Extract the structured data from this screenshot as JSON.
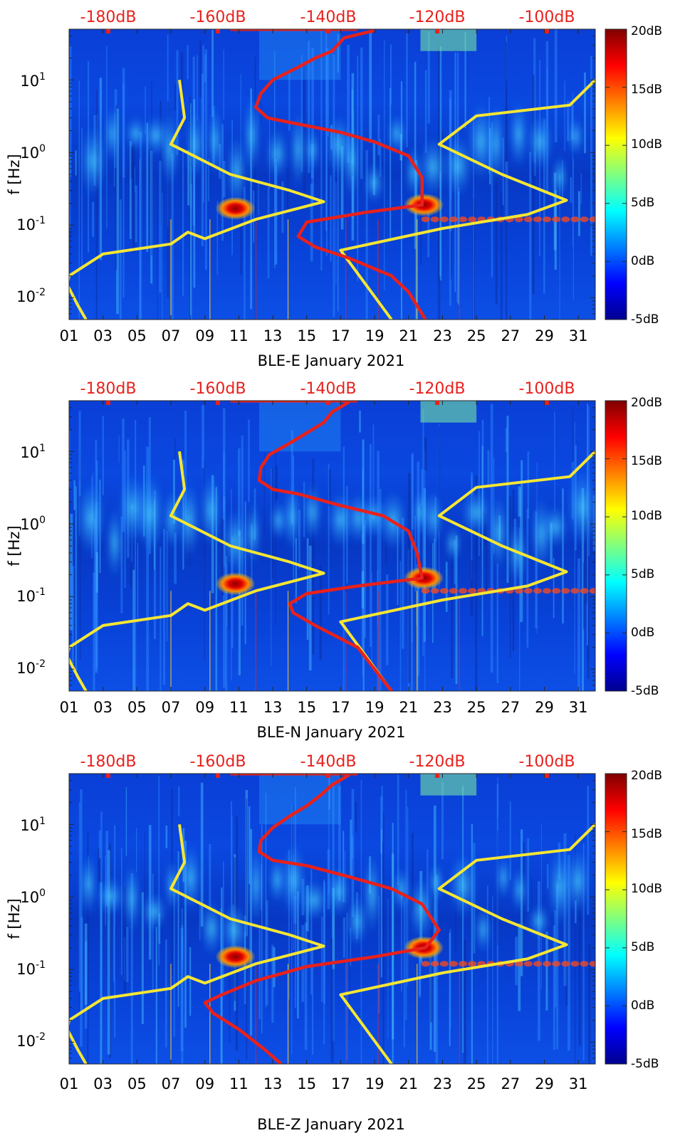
{
  "figure": {
    "panels": [
      {
        "id": "E",
        "xlabel": "BLE-E January 2021",
        "ylabel": "f [Hz]",
        "colorbar_ticks": [
          "20dB",
          "15dB",
          "10dB",
          "5dB",
          "0dB",
          "-5dB"
        ],
        "top_ticks": [
          "-180dB",
          "-160dB",
          "-140dB",
          "-120dB",
          "-100dB"
        ]
      },
      {
        "id": "N",
        "xlabel": "BLE-N January 2021",
        "ylabel": "f [Hz]",
        "colorbar_ticks": [
          "20dB",
          "15dB",
          "10dB",
          "5dB",
          "0dB",
          "-5dB"
        ],
        "top_ticks": [
          "-180dB",
          "-160dB",
          "-140dB",
          "-120dB",
          "-100dB"
        ]
      },
      {
        "id": "Z",
        "xlabel": "BLE-Z January 2021",
        "ylabel": "f [Hz]",
        "colorbar_ticks": [
          "20dB",
          "15dB",
          "10dB",
          "5dB",
          "0dB",
          "-5dB"
        ],
        "top_ticks": [
          "-180dB",
          "-160dB",
          "-140dB",
          "-120dB",
          "-100dB"
        ]
      }
    ],
    "x_ticks": [
      "01",
      "03",
      "05",
      "07",
      "09",
      "11",
      "13",
      "15",
      "17",
      "19",
      "21",
      "23",
      "25",
      "27",
      "29",
      "31"
    ],
    "y_ticks": [
      {
        "base": "10",
        "exp": "1"
      },
      {
        "base": "10",
        "exp": "0"
      },
      {
        "base": "10",
        "exp": "-1"
      },
      {
        "base": "10",
        "exp": "-2"
      }
    ]
  },
  "chart_data": [
    {
      "type": "heatmap",
      "title": "",
      "xlabel": "BLE-E January 2021",
      "ylabel": "f [Hz]",
      "xlim": [
        1,
        32
      ],
      "ylim_hz": [
        0.005,
        50
      ],
      "y_scale": "log",
      "colorbar": {
        "range_db": [
          -5,
          20
        ],
        "ticks": [
          20,
          15,
          10,
          5,
          0,
          -5
        ],
        "colormap": "jet"
      },
      "top_axis": {
        "ticks_db": [
          -180,
          -160,
          -140,
          -120,
          -100
        ],
        "color": "#e8211c"
      },
      "hotspots": [
        {
          "day": 10.8,
          "f_hz": 0.17,
          "level_db": 20
        },
        {
          "day": 21.9,
          "f_hz": 0.19,
          "level_db": 20
        }
      ],
      "series": [
        {
          "color": "#f5e633",
          "points": [
            [
              7.5,
              10
            ],
            [
              7.8,
              3
            ],
            [
              7.0,
              1.3
            ],
            [
              10.5,
              0.5
            ],
            [
              14.0,
              0.3
            ],
            [
              16.0,
              0.21
            ],
            [
              12.0,
              0.12
            ],
            [
              9.0,
              0.065
            ],
            [
              8.0,
              0.08
            ],
            [
              7.0,
              0.055
            ],
            [
              3.0,
              0.04
            ],
            [
              1.0,
              0.02
            ],
            [
              0.9,
              0.015
            ],
            [
              1.5,
              0.008
            ],
            [
              2.0,
              0.005
            ]
          ]
        },
        {
          "color": "#f5e633",
          "points": [
            [
              32,
              10
            ],
            [
              30.5,
              4.5
            ],
            [
              25,
              3.2
            ],
            [
              22.8,
              1.3
            ],
            [
              26.5,
              0.5
            ],
            [
              30.3,
              0.22
            ],
            [
              28,
              0.14
            ],
            [
              23,
              0.09
            ],
            [
              17,
              0.045
            ],
            [
              20,
              0.005
            ]
          ]
        },
        {
          "color": "#e8211c",
          "points": [
            [
              19,
              48
            ],
            [
              17.2,
              38
            ],
            [
              16.5,
              25
            ],
            [
              15.5,
              20
            ],
            [
              14.5,
              15
            ],
            [
              13.0,
              10
            ],
            [
              12.3,
              6.5
            ],
            [
              12.0,
              4.2
            ],
            [
              12.7,
              3.0
            ],
            [
              14.0,
              2.6
            ],
            [
              17.0,
              1.9
            ],
            [
              19.0,
              1.4
            ],
            [
              21.0,
              0.9
            ],
            [
              21.8,
              0.45
            ],
            [
              21.8,
              0.19
            ],
            [
              18.5,
              0.15
            ],
            [
              15.0,
              0.11
            ],
            [
              14.5,
              0.07
            ],
            [
              15.5,
              0.05
            ],
            [
              17.5,
              0.035
            ],
            [
              20.0,
              0.02
            ],
            [
              21.0,
              0.012
            ],
            [
              22.0,
              0.005
            ]
          ]
        }
      ]
    },
    {
      "type": "heatmap",
      "title": "",
      "xlabel": "BLE-N January 2021",
      "ylabel": "f [Hz]",
      "xlim": [
        1,
        32
      ],
      "ylim_hz": [
        0.005,
        50
      ],
      "y_scale": "log",
      "colorbar": {
        "range_db": [
          -5,
          20
        ],
        "ticks": [
          20,
          15,
          10,
          5,
          0,
          -5
        ],
        "colormap": "jet"
      },
      "top_axis": {
        "ticks_db": [
          -180,
          -160,
          -140,
          -120,
          -100
        ],
        "color": "#e8211c"
      },
      "hotspots": [
        {
          "day": 10.8,
          "f_hz": 0.15,
          "level_db": 20
        },
        {
          "day": 21.9,
          "f_hz": 0.18,
          "level_db": 20
        }
      ],
      "series": [
        {
          "color": "#f5e633",
          "points": [
            [
              7.5,
              10
            ],
            [
              7.8,
              3
            ],
            [
              7.0,
              1.3
            ],
            [
              10.5,
              0.5
            ],
            [
              14.0,
              0.3
            ],
            [
              16.0,
              0.21
            ],
            [
              12.0,
              0.12
            ],
            [
              9.0,
              0.065
            ],
            [
              8.0,
              0.08
            ],
            [
              7.0,
              0.055
            ],
            [
              3.0,
              0.04
            ],
            [
              1.0,
              0.02
            ],
            [
              0.9,
              0.015
            ],
            [
              1.5,
              0.008
            ],
            [
              2.0,
              0.005
            ]
          ]
        },
        {
          "color": "#f5e633",
          "points": [
            [
              32,
              10
            ],
            [
              30.5,
              4.5
            ],
            [
              25,
              3.2
            ],
            [
              22.8,
              1.3
            ],
            [
              26.5,
              0.5
            ],
            [
              30.3,
              0.22
            ],
            [
              28,
              0.14
            ],
            [
              23,
              0.09
            ],
            [
              17,
              0.045
            ],
            [
              20,
              0.005
            ]
          ]
        },
        {
          "color": "#e8211c",
          "points": [
            [
              17.5,
              48
            ],
            [
              16.5,
              35
            ],
            [
              16.0,
              25
            ],
            [
              15.0,
              18
            ],
            [
              14.0,
              13
            ],
            [
              12.8,
              9
            ],
            [
              12.3,
              6
            ],
            [
              12.2,
              4
            ],
            [
              13.0,
              3.0
            ],
            [
              14.5,
              2.6
            ],
            [
              17.0,
              1.8
            ],
            [
              19.5,
              1.3
            ],
            [
              21.0,
              0.8
            ],
            [
              21.5,
              0.4
            ],
            [
              21.8,
              0.18
            ],
            [
              18.0,
              0.14
            ],
            [
              15.0,
              0.11
            ],
            [
              14.0,
              0.08
            ],
            [
              14.2,
              0.06
            ],
            [
              15.5,
              0.04
            ],
            [
              18.0,
              0.02
            ],
            [
              20.0,
              0.005
            ]
          ]
        }
      ]
    },
    {
      "type": "heatmap",
      "title": "",
      "xlabel": "BLE-Z January 2021",
      "ylabel": "f [Hz]",
      "xlim": [
        1,
        32
      ],
      "ylim_hz": [
        0.005,
        50
      ],
      "y_scale": "log",
      "colorbar": {
        "range_db": [
          -5,
          20
        ],
        "ticks": [
          20,
          15,
          10,
          5,
          0,
          -5
        ],
        "colormap": "jet"
      },
      "top_axis": {
        "ticks_db": [
          -180,
          -160,
          -140,
          -120,
          -100
        ],
        "color": "#e8211c"
      },
      "hotspots": [
        {
          "day": 10.8,
          "f_hz": 0.15,
          "level_db": 20
        },
        {
          "day": 21.9,
          "f_hz": 0.2,
          "level_db": 20
        }
      ],
      "series": [
        {
          "color": "#f5e633",
          "points": [
            [
              7.5,
              10
            ],
            [
              7.8,
              3
            ],
            [
              7.0,
              1.3
            ],
            [
              10.5,
              0.5
            ],
            [
              14.0,
              0.3
            ],
            [
              16.0,
              0.21
            ],
            [
              12.0,
              0.12
            ],
            [
              9.0,
              0.065
            ],
            [
              8.0,
              0.08
            ],
            [
              7.0,
              0.055
            ],
            [
              3.0,
              0.04
            ],
            [
              1.0,
              0.02
            ],
            [
              0.9,
              0.015
            ],
            [
              1.5,
              0.008
            ],
            [
              2.0,
              0.005
            ]
          ]
        },
        {
          "color": "#f5e633",
          "points": [
            [
              32,
              10
            ],
            [
              30.5,
              4.5
            ],
            [
              25,
              3.2
            ],
            [
              22.8,
              1.3
            ],
            [
              26.5,
              0.5
            ],
            [
              30.3,
              0.22
            ],
            [
              28,
              0.14
            ],
            [
              23,
              0.09
            ],
            [
              17,
              0.045
            ],
            [
              20,
              0.005
            ]
          ]
        },
        {
          "color": "#e8211c",
          "points": [
            [
              17.5,
              48
            ],
            [
              16.5,
              35
            ],
            [
              15.8,
              25
            ],
            [
              15.0,
              18
            ],
            [
              14.0,
              13
            ],
            [
              13.0,
              9
            ],
            [
              12.3,
              6
            ],
            [
              12.2,
              4.2
            ],
            [
              13.0,
              3.2
            ],
            [
              15.0,
              2.7
            ],
            [
              17.5,
              1.9
            ],
            [
              20.0,
              1.3
            ],
            [
              21.8,
              0.8
            ],
            [
              22.8,
              0.35
            ],
            [
              22.0,
              0.2
            ],
            [
              19.0,
              0.15
            ],
            [
              15.0,
              0.11
            ],
            [
              12.0,
              0.07
            ],
            [
              10.0,
              0.045
            ],
            [
              9.0,
              0.035
            ],
            [
              9.5,
              0.025
            ],
            [
              11.0,
              0.015
            ],
            [
              12.5,
              0.008
            ],
            [
              13.5,
              0.005
            ]
          ]
        }
      ]
    }
  ]
}
